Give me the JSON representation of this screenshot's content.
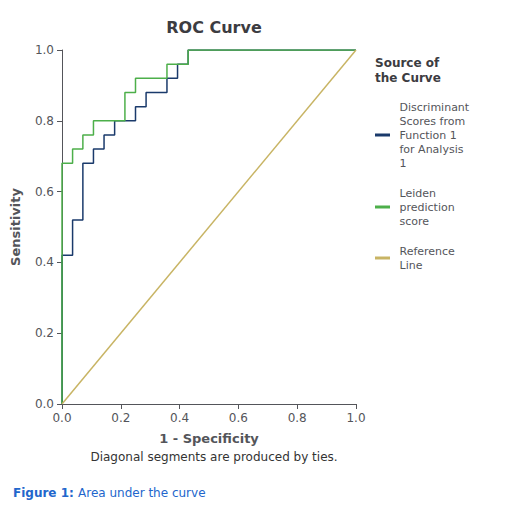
{
  "chart_data": {
    "type": "line",
    "title": "ROC Curve",
    "subtitle": "Diagonal segments are produced by ties.",
    "caption": {
      "bold": "Figure 1:",
      "text": "Area under the curve"
    },
    "xlabel": "1 - Specificity",
    "ylabel": "Sensitivity",
    "legend_title": "Source of\nthe Curve",
    "legend": "right",
    "grid": false,
    "xlim": [
      0.0,
      1.0
    ],
    "ylim": [
      0.0,
      1.0
    ],
    "xticks": [
      {
        "value": 0.0,
        "label": "0.0"
      },
      0.2,
      0.4,
      0.6,
      0.8,
      {
        "value": 1.0,
        "label": "1.0"
      }
    ],
    "yticks": [
      {
        "value": 0.0,
        "label": "0.0"
      },
      0.2,
      0.4,
      0.6,
      0.8,
      {
        "value": 1.0,
        "label": "1.0"
      }
    ],
    "series": [
      {
        "name": "Discriminant\nScores from\nFunction 1\nfor Analysis\n1",
        "color": "#1a3a6b",
        "x": [
          0.0,
          0.0,
          0.036,
          0.036,
          0.071,
          0.071,
          0.107,
          0.107,
          0.143,
          0.143,
          0.179,
          0.179,
          0.25,
          0.25,
          0.286,
          0.286,
          0.357,
          0.357,
          0.393,
          0.393,
          0.429,
          0.429,
          0.5,
          0.5,
          0.536,
          0.536,
          0.607,
          0.607,
          0.679,
          0.679,
          1.0
        ],
        "values": [
          0.0,
          0.42,
          0.42,
          0.52,
          0.52,
          0.68,
          0.68,
          0.72,
          0.72,
          0.76,
          0.76,
          0.8,
          0.8,
          0.84,
          0.84,
          0.88,
          0.88,
          0.92,
          0.92,
          0.96,
          0.96,
          1.0,
          1.0,
          1.0,
          1.0,
          1.0,
          1.0,
          1.0,
          1.0,
          1.0,
          1.0
        ]
      },
      {
        "name": "Leiden\nprediction\nscore",
        "color": "#4daf4a",
        "x": [
          0.0,
          0.0,
          0.036,
          0.036,
          0.071,
          0.071,
          0.107,
          0.107,
          0.214,
          0.214,
          0.25,
          0.25,
          0.357,
          0.357,
          0.429,
          0.429,
          0.5,
          0.5,
          0.571,
          0.571,
          1.0
        ],
        "values": [
          0.0,
          0.68,
          0.68,
          0.72,
          0.72,
          0.76,
          0.76,
          0.8,
          0.8,
          0.88,
          0.88,
          0.92,
          0.92,
          0.96,
          0.96,
          1.0,
          1.0,
          1.0,
          1.0,
          1.0,
          1.0
        ]
      },
      {
        "name": "Reference\nLine",
        "color": "#c8b464",
        "x": [
          0,
          1
        ],
        "values": [
          0,
          1
        ]
      }
    ]
  }
}
